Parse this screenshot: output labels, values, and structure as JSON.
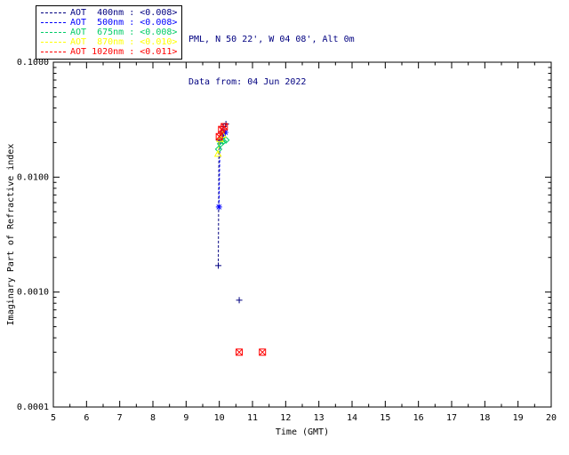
{
  "header": {
    "line1": "PML, N 50 22', W 04 08', Alt 0m",
    "line2": "Data from: 04 Jun 2022",
    "color": "#000080"
  },
  "legend": {
    "items": [
      {
        "label": "AOT  400nm : <0.008>",
        "color": "#000080"
      },
      {
        "label": "AOT  500nm : <0.008>",
        "color": "#0000ff"
      },
      {
        "label": "AOT  675nm : <0.008>",
        "color": "#00cc66"
      },
      {
        "label": "AOT  870nm : <0.010>",
        "color": "#ffff00"
      },
      {
        "label": "AOT 1020nm : <0.011>",
        "color": "#ff0000"
      }
    ]
  },
  "chart_data": {
    "type": "scatter",
    "title": "",
    "xlabel": "Time (GMT)",
    "ylabel": "Imaginary Part of Refractive index",
    "xlim": [
      5,
      20
    ],
    "ylim": [
      0.0001,
      0.1
    ],
    "yscale": "log",
    "grid": false,
    "legend_position": "top-left",
    "xticks": [
      5,
      6,
      7,
      8,
      9,
      10,
      11,
      12,
      13,
      14,
      15,
      16,
      17,
      18,
      19,
      20
    ],
    "yticks": [
      {
        "value": 0.1,
        "label": "0.1000"
      },
      {
        "value": 0.01,
        "label": "0.0100"
      },
      {
        "value": 0.001,
        "label": "0.0010"
      },
      {
        "value": 0.0001,
        "label": "0.0001"
      }
    ],
    "connect_gap_max_x": 0.35,
    "series": [
      {
        "name": "AOT 400nm",
        "color": "#000080",
        "marker": "plus",
        "points": [
          [
            9.97,
            0.0017
          ],
          [
            9.99,
            0.021
          ],
          [
            10.05,
            0.0245
          ],
          [
            10.12,
            0.0275
          ],
          [
            10.2,
            0.029
          ],
          [
            10.6,
            0.00085
          ]
        ]
      },
      {
        "name": "AOT 500nm",
        "color": "#0000ff",
        "marker": "asterisk",
        "points": [
          [
            9.99,
            0.0055
          ],
          [
            10.02,
            0.0205
          ],
          [
            10.1,
            0.023
          ],
          [
            10.18,
            0.0245
          ]
        ]
      },
      {
        "name": "AOT 675nm",
        "color": "#00cc66",
        "marker": "diamond",
        "points": [
          [
            9.98,
            0.0175
          ],
          [
            10.04,
            0.0195
          ],
          [
            10.12,
            0.0205
          ],
          [
            10.2,
            0.021
          ]
        ]
      },
      {
        "name": "AOT 870nm",
        "color": "#ffff00",
        "marker": "triangle",
        "points": [
          [
            9.96,
            0.016
          ],
          [
            10.02,
            0.0215
          ],
          [
            10.1,
            0.0235
          ]
        ]
      },
      {
        "name": "AOT 1020nm",
        "color": "#ff0000",
        "marker": "square-x",
        "points": [
          [
            10.0,
            0.0225
          ],
          [
            10.07,
            0.026
          ],
          [
            10.15,
            0.0275
          ],
          [
            10.6,
            0.0003
          ],
          [
            11.3,
            0.0003
          ]
        ]
      }
    ]
  }
}
